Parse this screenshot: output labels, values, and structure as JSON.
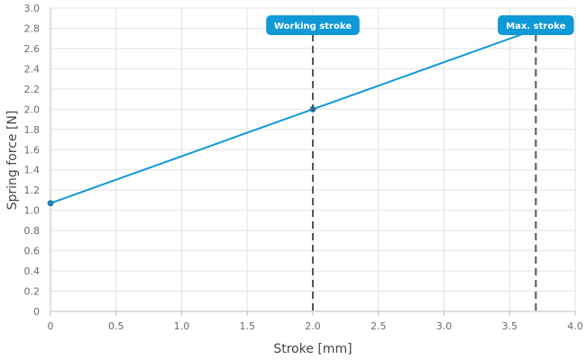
{
  "chart_data": {
    "type": "line",
    "xlabel": "Stroke [mm]",
    "ylabel": "Spring force [N]",
    "xlim": [
      0,
      4.0
    ],
    "ylim": [
      0,
      3.0
    ],
    "x_ticks": [
      "0",
      "0.5",
      "1.0",
      "1.5",
      "2.0",
      "2.5",
      "3.0",
      "3.5",
      "4.0"
    ],
    "y_ticks": [
      "0",
      "0.2",
      "0.4",
      "0.6",
      "0.8",
      "1.0",
      "1.2",
      "1.4",
      "1.6",
      "1.8",
      "2.0",
      "2.2",
      "2.4",
      "2.6",
      "2.8",
      "3.0"
    ],
    "grid": true,
    "series": [
      {
        "color": "#0f99d6",
        "x": [
          0,
          3.7
        ],
        "y": [
          1.07,
          2.79
        ]
      }
    ],
    "points": [
      {
        "x": 0,
        "y": 1.07
      },
      {
        "x": 2.0,
        "y": 2.0
      }
    ],
    "markers": [
      {
        "x": 2.0,
        "label": "Working stroke"
      },
      {
        "x": 3.7,
        "label": "Max. stroke"
      }
    ],
    "colors": {
      "line": "#0f99d6",
      "point": "#1d7fb0",
      "marker_box": "#0f99d6",
      "marker_line": "#555555",
      "grid": "#e3e3e3"
    }
  }
}
